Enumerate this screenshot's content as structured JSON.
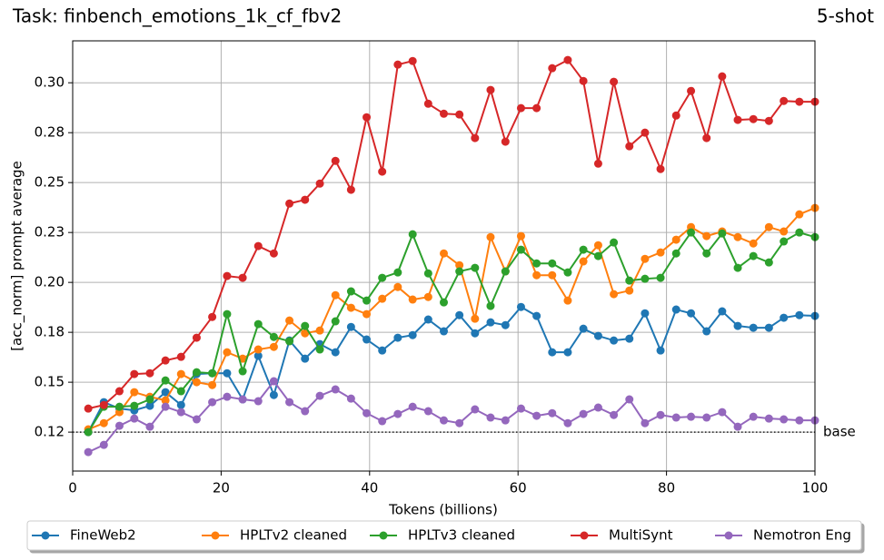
{
  "chart_data": {
    "type": "line",
    "title": "Task: finbench_emotions_1k_cf_fbv2",
    "subtitle": "5-shot",
    "xlabel": "Tokens (billions)",
    "ylabel": "[acc_norm] prompt average",
    "xlim": [
      0,
      100
    ],
    "xticks": [
      0,
      20,
      40,
      60,
      80,
      100
    ],
    "ylim": [
      0.1055,
      0.321
    ],
    "yticks": [
      {
        "value": 0.125,
        "label": "0.12"
      },
      0.15,
      {
        "value": 0.175,
        "label": "0.18"
      },
      {
        "value": 0.2,
        "label": "0.20"
      },
      {
        "value": 0.225,
        "label": "0.23"
      },
      0.25,
      {
        "value": 0.275,
        "label": "0.28"
      },
      {
        "value": 0.3,
        "label": "0.30"
      }
    ],
    "grid": true,
    "legend": "bottom",
    "baseline": {
      "value": 0.125,
      "label": "base"
    },
    "x": [
      2.1,
      4.2,
      6.3,
      8.3,
      10.4,
      12.5,
      14.6,
      16.7,
      18.8,
      20.8,
      22.9,
      25.0,
      27.1,
      29.2,
      31.3,
      33.3,
      35.4,
      37.5,
      39.6,
      41.7,
      43.8,
      45.8,
      47.9,
      50.0,
      52.1,
      54.2,
      56.3,
      58.3,
      60.4,
      62.5,
      64.6,
      66.7,
      68.8,
      70.8,
      72.9,
      75.0,
      77.1,
      79.2,
      81.3,
      83.3,
      85.4,
      87.5,
      89.6,
      91.7,
      93.8,
      95.8,
      97.9,
      100.0
    ],
    "series": [
      {
        "name": "FineWeb2",
        "color": "#1f77b4",
        "values": [
          0.125,
          0.14,
          0.1368,
          0.1359,
          0.1382,
          0.145,
          0.1386,
          0.1541,
          0.1545,
          0.1545,
          0.1414,
          0.1632,
          0.1436,
          0.1709,
          0.1618,
          0.1691,
          0.165,
          0.1777,
          0.1714,
          0.1659,
          0.1723,
          0.1736,
          0.1814,
          0.1755,
          0.1836,
          0.1745,
          0.18,
          0.1786,
          0.1877,
          0.1832,
          0.165,
          0.165,
          0.1768,
          0.1732,
          0.1709,
          0.1718,
          0.1845,
          0.1659,
          0.1864,
          0.1845,
          0.1755,
          0.1855,
          0.1782,
          0.1773,
          0.1773,
          0.1823,
          0.1836,
          0.1832
        ]
      },
      {
        "name": "HPLTv2 cleaned",
        "color": "#ff7f0e",
        "values": [
          0.1264,
          0.1295,
          0.135,
          0.145,
          0.1427,
          0.1409,
          0.1541,
          0.15,
          0.1486,
          0.165,
          0.1618,
          0.1664,
          0.1677,
          0.1809,
          0.1745,
          0.1759,
          0.1936,
          0.1873,
          0.1841,
          0.1918,
          0.1977,
          0.1914,
          0.1927,
          0.2145,
          0.2086,
          0.1818,
          0.2227,
          0.2055,
          0.2232,
          0.2036,
          0.2036,
          0.1909,
          0.2105,
          0.2186,
          0.1941,
          0.1959,
          0.2118,
          0.215,
          0.2214,
          0.2277,
          0.2232,
          0.2255,
          0.2227,
          0.2195,
          0.2277,
          0.2255,
          0.2341,
          0.2373
        ]
      },
      {
        "name": "HPLTv3 cleaned",
        "color": "#2ca02c",
        "values": [
          0.125,
          0.1377,
          0.1377,
          0.1382,
          0.1414,
          0.1509,
          0.1455,
          0.155,
          0.1545,
          0.1841,
          0.1555,
          0.1791,
          0.1727,
          0.1705,
          0.1782,
          0.1664,
          0.1805,
          0.1955,
          0.1909,
          0.2023,
          0.205,
          0.2241,
          0.2045,
          0.19,
          0.2055,
          0.2073,
          0.1882,
          0.2055,
          0.2164,
          0.2095,
          0.2095,
          0.205,
          0.2164,
          0.2132,
          0.22,
          0.2009,
          0.2018,
          0.2023,
          0.2145,
          0.225,
          0.2145,
          0.2245,
          0.2073,
          0.2132,
          0.21,
          0.2205,
          0.225,
          0.2227
        ]
      },
      {
        "name": "MultiSynt",
        "color": "#d62728",
        "values": [
          0.1368,
          0.1386,
          0.1455,
          0.1541,
          0.1545,
          0.1609,
          0.1627,
          0.1723,
          0.1827,
          0.2032,
          0.2023,
          0.2182,
          0.2145,
          0.2395,
          0.2414,
          0.2495,
          0.2609,
          0.2464,
          0.2827,
          0.2555,
          0.3091,
          0.3109,
          0.2895,
          0.2845,
          0.2841,
          0.2723,
          0.2964,
          0.2705,
          0.2873,
          0.2873,
          0.3073,
          0.3114,
          0.3009,
          0.2595,
          0.3005,
          0.2682,
          0.275,
          0.2568,
          0.2836,
          0.2959,
          0.2723,
          0.3032,
          0.2814,
          0.2818,
          0.2809,
          0.2909,
          0.2905,
          0.2905
        ]
      },
      {
        "name": "Nemotron Eng",
        "color": "#9467bd",
        "values": [
          0.115,
          0.1186,
          0.1282,
          0.1318,
          0.1277,
          0.1377,
          0.135,
          0.1314,
          0.14,
          0.1427,
          0.1414,
          0.1405,
          0.1505,
          0.14,
          0.1355,
          0.1432,
          0.1464,
          0.1418,
          0.1345,
          0.1305,
          0.1341,
          0.1377,
          0.1355,
          0.1309,
          0.1295,
          0.1364,
          0.1323,
          0.1309,
          0.1368,
          0.1332,
          0.1345,
          0.1295,
          0.1341,
          0.1373,
          0.1336,
          0.1414,
          0.1295,
          0.1336,
          0.1323,
          0.1327,
          0.1323,
          0.135,
          0.1277,
          0.1327,
          0.1318,
          0.1314,
          0.1309,
          0.1309
        ]
      }
    ]
  }
}
